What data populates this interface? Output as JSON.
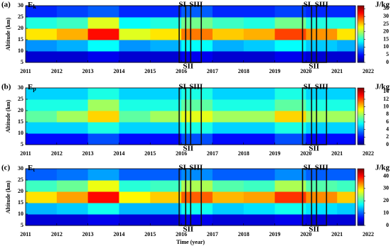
{
  "chart_data": [
    {
      "type": "heatmap",
      "panel_label": "(a)",
      "quantity": "E",
      "subscript": "k",
      "unit": "J/kg",
      "ylabel": "Altitude (km)",
      "x": [
        2011.5,
        2012.5,
        2013.5,
        2014.5,
        2015.5,
        2016.5,
        2017.5,
        2018.5,
        2019.5,
        2020.5,
        2021.5
      ],
      "y": [
        7.5,
        12.5,
        17.5,
        22.5,
        27.5
      ],
      "z": [
        [
          3,
          3,
          4,
          3,
          3,
          4,
          3,
          3,
          4,
          3,
          3
        ],
        [
          10,
          11,
          14,
          10,
          11,
          14,
          11,
          12,
          14,
          12,
          11
        ],
        [
          24,
          26,
          32,
          22,
          24,
          28,
          25,
          26,
          30,
          27,
          24
        ],
        [
          15,
          16,
          22,
          14,
          15,
          18,
          16,
          15,
          18,
          15,
          15
        ],
        [
          6,
          7,
          8,
          6,
          6,
          8,
          6,
          6,
          7,
          6,
          6
        ]
      ],
      "xlim": [
        2011,
        2022
      ],
      "xticks": [
        2011,
        2012,
        2013,
        2014,
        2015,
        2016,
        2017,
        2018,
        2019,
        2020,
        2021,
        2022
      ],
      "ylim": [
        5,
        30
      ],
      "yticks": [
        5,
        10,
        15,
        20,
        25,
        30
      ],
      "zlim": [
        0,
        37
      ],
      "zticks": [
        0,
        5,
        10,
        15,
        20,
        25,
        30,
        35
      ],
      "regions": [
        {
          "label": "SI",
          "xlim": [
            2015.93,
            2016.14
          ]
        },
        {
          "label": "SII",
          "xlim": [
            2016.14,
            2016.3
          ]
        },
        {
          "label": "SIII",
          "xlim": [
            2016.3,
            2016.64
          ]
        },
        {
          "label": "SI",
          "xlim": [
            2019.89,
            2020.18
          ]
        },
        {
          "label": "SII",
          "xlim": [
            2020.18,
            2020.34
          ]
        },
        {
          "label": "SIII",
          "xlim": [
            2020.34,
            2020.66
          ]
        }
      ]
    },
    {
      "type": "heatmap",
      "panel_label": "(b)",
      "quantity": "E",
      "subscript": "p",
      "unit": "J/kg",
      "ylabel": "Altitude (km)",
      "x": [
        2011.5,
        2012.5,
        2013.5,
        2014.5,
        2015.5,
        2016.5,
        2017.5,
        2018.5,
        2019.5,
        2020.5,
        2021.5
      ],
      "y": [
        7.5,
        12.5,
        17.5,
        22.5,
        27.5
      ],
      "z": [
        [
          2,
          2,
          3,
          2,
          2,
          3,
          2,
          2,
          3,
          2,
          2
        ],
        [
          5,
          5,
          6,
          5,
          5,
          6,
          5,
          5,
          6,
          5,
          5
        ],
        [
          7,
          8,
          10,
          7,
          8,
          9,
          8,
          8,
          10,
          8,
          8
        ],
        [
          6,
          6,
          8,
          6,
          6,
          7,
          6,
          6,
          7,
          6,
          6
        ],
        [
          5,
          5,
          6,
          5,
          5,
          6,
          5,
          5,
          6,
          5,
          5
        ]
      ],
      "xlim": [
        2011,
        2022
      ],
      "xticks": [
        2011,
        2012,
        2013,
        2014,
        2015,
        2016,
        2017,
        2018,
        2019,
        2020,
        2021,
        2022
      ],
      "ylim": [
        5,
        30
      ],
      "yticks": [
        5,
        10,
        15,
        20,
        25,
        30
      ],
      "zlim": [
        0,
        15
      ],
      "zticks": [
        0,
        2,
        4,
        6,
        8,
        10,
        12,
        14
      ],
      "regions": [
        {
          "label": "SI",
          "xlim": [
            2015.93,
            2016.14
          ]
        },
        {
          "label": "SII",
          "xlim": [
            2016.14,
            2016.3
          ]
        },
        {
          "label": "SIII",
          "xlim": [
            2016.3,
            2016.64
          ]
        },
        {
          "label": "SI",
          "xlim": [
            2019.89,
            2020.18
          ]
        },
        {
          "label": "SII",
          "xlim": [
            2020.18,
            2020.34
          ]
        },
        {
          "label": "SIII",
          "xlim": [
            2020.34,
            2020.66
          ]
        }
      ]
    },
    {
      "type": "heatmap",
      "panel_label": "(c)",
      "quantity": "E",
      "subscript": "t",
      "unit": "J/kg",
      "ylabel": "Altitude (km)",
      "xlabel": "Time (year)",
      "x": [
        2011.5,
        2012.5,
        2013.5,
        2014.5,
        2015.5,
        2016.5,
        2017.5,
        2018.5,
        2019.5,
        2020.5,
        2021.5
      ],
      "y": [
        7.5,
        12.5,
        17.5,
        22.5,
        27.5
      ],
      "z": [
        [
          4,
          4,
          5,
          4,
          4,
          5,
          4,
          4,
          5,
          4,
          4
        ],
        [
          14,
          15,
          18,
          14,
          14,
          18,
          15,
          16,
          18,
          16,
          15
        ],
        [
          30,
          33,
          40,
          29,
          31,
          36,
          32,
          33,
          38,
          34,
          31
        ],
        [
          20,
          22,
          28,
          19,
          20,
          25,
          21,
          20,
          25,
          21,
          20
        ],
        [
          10,
          11,
          13,
          10,
          10,
          12,
          10,
          10,
          12,
          10,
          10
        ]
      ],
      "xlim": [
        2011,
        2022
      ],
      "xticks": [
        2011,
        2012,
        2013,
        2014,
        2015,
        2016,
        2017,
        2018,
        2019,
        2020,
        2021,
        2022
      ],
      "ylim": [
        5,
        30
      ],
      "yticks": [
        5,
        10,
        15,
        20,
        25,
        30
      ],
      "zlim": [
        0,
        46
      ],
      "zticks": [
        0,
        10,
        20,
        30,
        40
      ],
      "regions": [
        {
          "label": "SI",
          "xlim": [
            2015.93,
            2016.14
          ]
        },
        {
          "label": "SII",
          "xlim": [
            2016.14,
            2016.3
          ]
        },
        {
          "label": "SIII",
          "xlim": [
            2016.3,
            2016.64
          ]
        },
        {
          "label": "SI",
          "xlim": [
            2019.89,
            2020.18
          ]
        },
        {
          "label": "SII",
          "xlim": [
            2020.18,
            2020.34
          ]
        },
        {
          "label": "SIII",
          "xlim": [
            2020.34,
            2020.66
          ]
        }
      ]
    }
  ]
}
